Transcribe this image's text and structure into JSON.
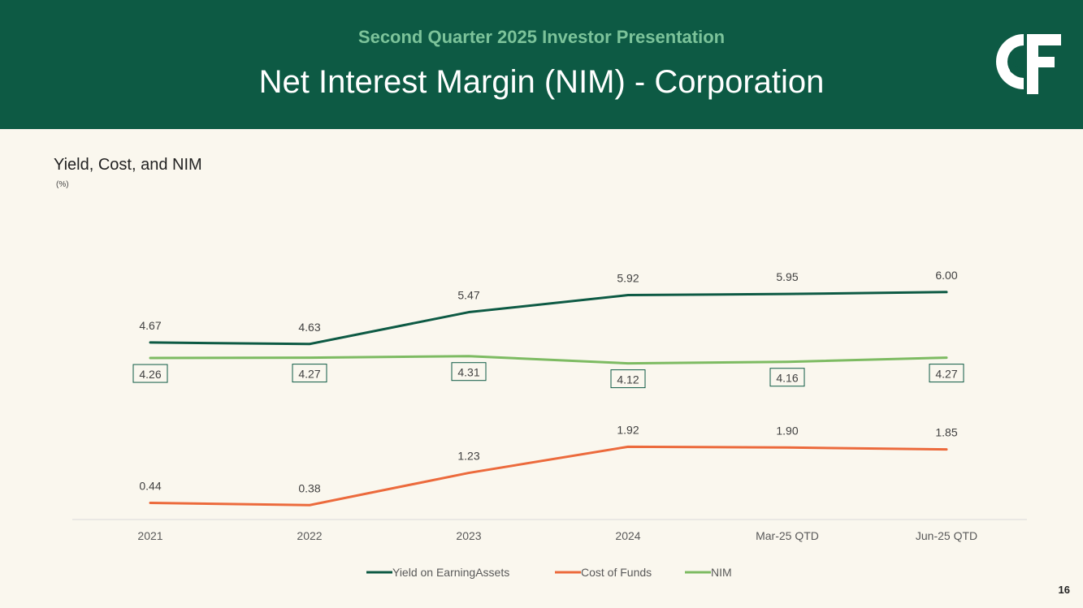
{
  "header": {
    "subtitle": "Second Quarter 2025 Investor Presentation",
    "title": "Net Interest Margin (NIM) - Corporation",
    "logo_text": "C&F"
  },
  "page_number": "16",
  "colors": {
    "header_bg": "#0d5a44",
    "yield": "#0d5a44",
    "cost": "#ec6a3c",
    "nim": "#7dbb62"
  },
  "chart_data": {
    "type": "line",
    "title": "Yield, Cost, and NIM",
    "unit_label": "(%)",
    "xlabel": "",
    "ylabel": "",
    "ylim": [
      0,
      6.5
    ],
    "grid": false,
    "legend_position": "bottom-center",
    "categories": [
      "2021",
      "2022",
      "2023",
      "2024",
      "Mar-25 QTD",
      "Jun-25 QTD"
    ],
    "series": [
      {
        "name": "Yield on EarningAssets",
        "key": "yield",
        "values": [
          4.67,
          4.63,
          5.47,
          5.92,
          5.95,
          6.0
        ],
        "labels": [
          "4.67",
          "4.63",
          "5.47",
          "5.92",
          "5.95",
          "6.00"
        ],
        "label_style": "plain"
      },
      {
        "name": "Cost of Funds",
        "key": "cost",
        "values": [
          0.44,
          0.38,
          1.23,
          1.92,
          1.9,
          1.85
        ],
        "labels": [
          "0.44",
          "0.38",
          "1.23",
          "1.92",
          "1.90",
          "1.85"
        ],
        "label_style": "plain"
      },
      {
        "name": "NIM",
        "key": "nim",
        "values": [
          4.26,
          4.27,
          4.31,
          4.12,
          4.16,
          4.27
        ],
        "labels": [
          "4.26",
          "4.27",
          "4.31",
          "4.12",
          "4.16",
          "4.27"
        ],
        "label_style": "boxed"
      }
    ]
  }
}
